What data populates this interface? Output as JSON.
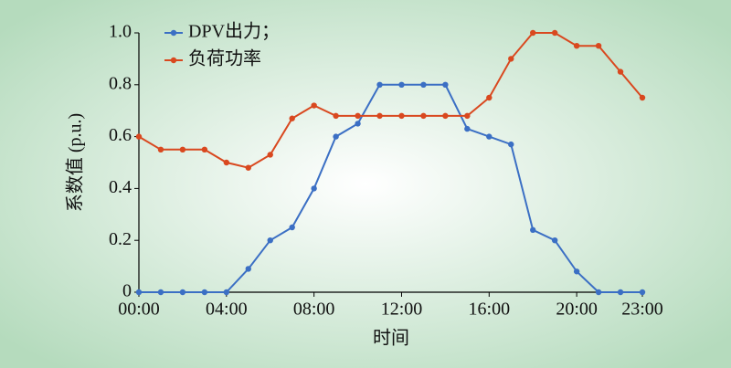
{
  "chart_data": {
    "type": "line",
    "x": [
      0,
      1,
      2,
      3,
      4,
      5,
      6,
      7,
      8,
      9,
      10,
      11,
      12,
      13,
      14,
      15,
      16,
      17,
      18,
      19,
      20,
      21,
      22,
      23
    ],
    "xlim": [
      0,
      23
    ],
    "xticks": [
      {
        "value": 0,
        "label": "00:00"
      },
      {
        "value": 4,
        "label": "04:00"
      },
      {
        "value": 8,
        "label": "08:00"
      },
      {
        "value": 12,
        "label": "12:00"
      },
      {
        "value": 16,
        "label": "16:00"
      },
      {
        "value": 20,
        "label": "20:00"
      },
      {
        "value": 23,
        "label": "23:00"
      }
    ],
    "ylim": [
      0,
      1
    ],
    "yticks": [
      0,
      0.2,
      0.4,
      0.6,
      0.8,
      {
        "value": 1,
        "label": "1.0"
      }
    ],
    "xlabel": "时间",
    "ylabel": "系数值 (p.u.)",
    "legend": "top-left",
    "series": [
      {
        "name": "DPV出力；",
        "color": "#3b6fc4",
        "values": [
          0,
          0,
          0,
          0,
          0,
          0.09,
          0.2,
          0.25,
          0.4,
          0.6,
          0.65,
          0.8,
          0.8,
          0.8,
          0.8,
          0.63,
          0.6,
          0.57,
          0.24,
          0.2,
          0.08,
          0,
          0,
          0
        ]
      },
      {
        "name": "负荷功率",
        "color": "#d9481f",
        "values": [
          0.6,
          0.55,
          0.55,
          0.55,
          0.5,
          0.48,
          0.53,
          0.67,
          0.72,
          0.68,
          0.68,
          0.68,
          0.68,
          0.68,
          0.68,
          0.68,
          0.75,
          0.9,
          1,
          1,
          0.95,
          0.95,
          0.85,
          0.75
        ]
      }
    ]
  }
}
